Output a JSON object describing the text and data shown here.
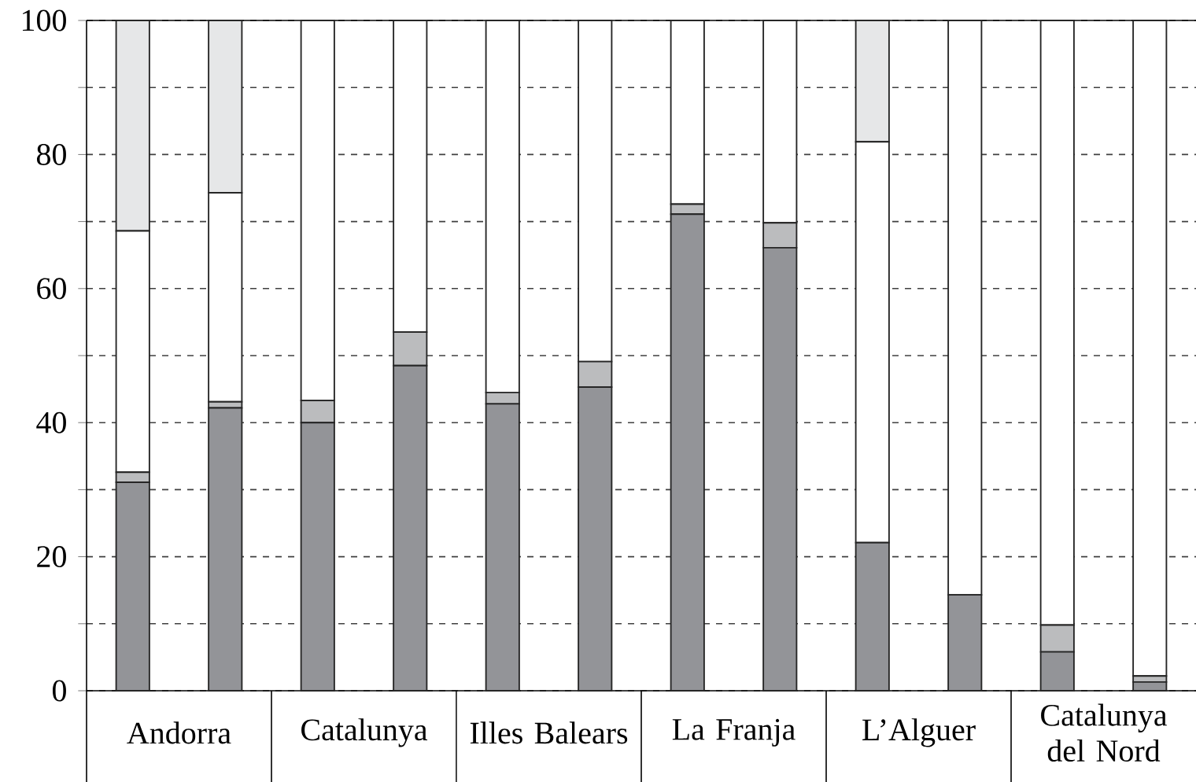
{
  "chart_data": {
    "type": "bar",
    "stacked": true,
    "categories": [
      "Andorra",
      null,
      "Catalunya",
      null,
      "Illes Balears",
      null,
      "La Franja",
      null,
      "L’Alguer",
      null,
      "Catalunya del Nord",
      null
    ],
    "series": [
      {
        "color": "#939498",
        "values": [
          31.1,
          42.2,
          40.0,
          48.5,
          42.8,
          45.3,
          71.1,
          66.1,
          22.1,
          14.3,
          5.8,
          1.3
        ]
      },
      {
        "color": "#bbbcbe",
        "values": [
          1.5,
          0.9,
          3.3,
          5.0,
          1.7,
          3.8,
          1.5,
          3.7,
          0,
          0,
          4.0,
          0.9
        ]
      },
      {
        "color": "#ffffff",
        "values": [
          36.0,
          31.2,
          56.7,
          46.5,
          55.5,
          50.9,
          27.4,
          30.2,
          59.8,
          85.7,
          90.2,
          97.8
        ]
      },
      {
        "color": "#e6e7e8",
        "values": [
          31.4,
          25.7,
          0,
          0,
          0,
          0,
          0,
          0,
          18.1,
          0,
          0,
          0
        ]
      }
    ],
    "ylim": [
      0,
      100
    ],
    "yticks": [
      0,
      {
        "value": 10,
        "label": null
      },
      20,
      {
        "value": 30,
        "label": null
      },
      40,
      {
        "value": 50,
        "label": null
      },
      60,
      {
        "value": 70,
        "label": null
      },
      80,
      {
        "value": 90,
        "label": null
      },
      100
    ],
    "grid": "y"
  }
}
